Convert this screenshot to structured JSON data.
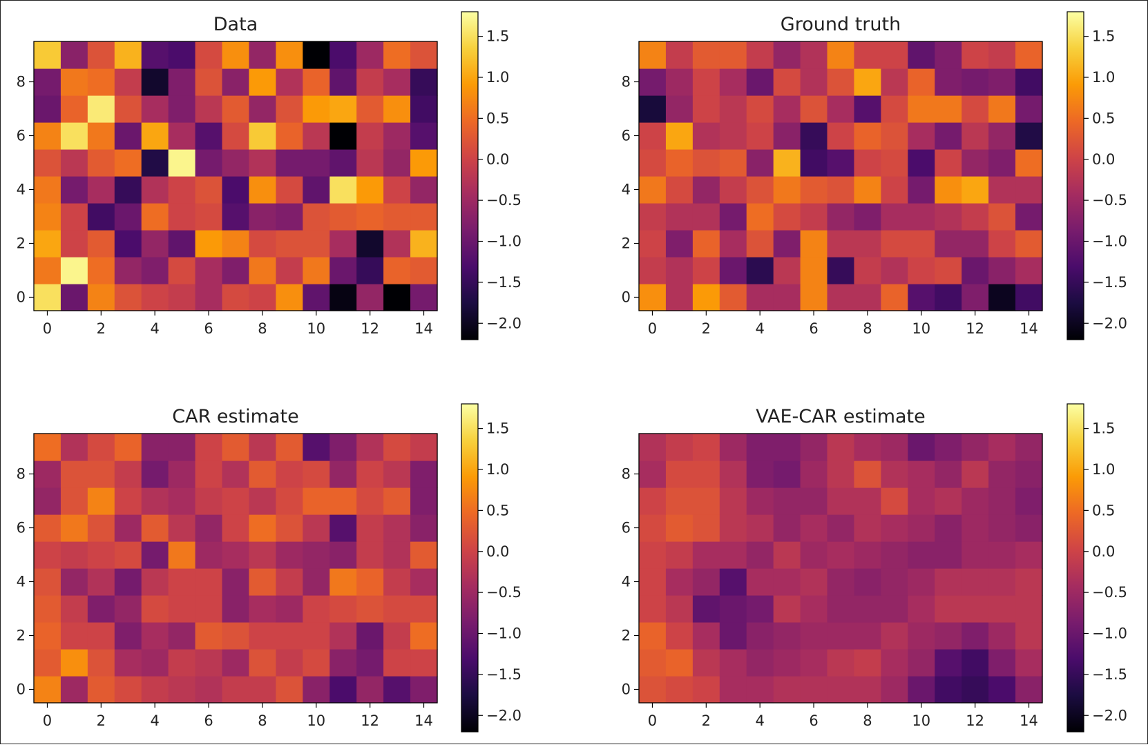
{
  "colormap": "inferno",
  "colormap_stops": [
    "#000004",
    "#1b0c41",
    "#4a0c6b",
    "#781c6d",
    "#a52c60",
    "#cf4446",
    "#ed6925",
    "#fb9b06",
    "#f7d13d",
    "#fcffa4"
  ],
  "chart_data": [
    {
      "type": "heatmap",
      "title": "Data",
      "xlim": [
        -0.5,
        14.5
      ],
      "ylim": [
        -0.5,
        9.5
      ],
      "xticks": [
        0,
        2,
        4,
        6,
        8,
        10,
        12,
        14
      ],
      "yticks": [
        0,
        2,
        4,
        6,
        8
      ],
      "colorbar": {
        "vmin": -2.2,
        "vmax": 1.8,
        "ticks": [
          1.5,
          1.0,
          0.5,
          0.0,
          -0.5,
          -1.0,
          -1.5,
          -2.0
        ],
        "tick_labels": [
          "1.5",
          "1.0",
          "0.5",
          "0.0",
          "−0.5",
          "−1.0",
          "−1.5",
          "−2.0"
        ]
      },
      "values": [
        [
          1.5,
          -1.0,
          0.7,
          0.2,
          0.0,
          -0.1,
          -0.4,
          0.1,
          0.0,
          0.8,
          -1.1,
          -2.1,
          -0.6,
          -2.2,
          -0.9
        ],
        [
          0.6,
          1.7,
          0.5,
          -0.6,
          -0.8,
          0.1,
          -0.4,
          -0.8,
          0.6,
          -0.1,
          0.6,
          -1.0,
          -1.5,
          0.4,
          0.3
        ],
        [
          1.0,
          0.0,
          0.3,
          -1.3,
          -0.6,
          -1.1,
          0.9,
          0.7,
          0.1,
          0.2,
          0.2,
          -0.4,
          -1.9,
          -0.3,
          1.1
        ],
        [
          0.7,
          0.0,
          -1.4,
          -1.0,
          0.5,
          0.0,
          0.1,
          -1.2,
          -0.7,
          -0.8,
          0.2,
          0.3,
          0.4,
          0.3,
          0.3
        ],
        [
          0.6,
          -0.9,
          -0.4,
          -1.5,
          -0.3,
          0.0,
          0.2,
          -1.3,
          0.8,
          0.1,
          -1.1,
          1.5,
          0.9,
          0.0,
          -0.6
        ],
        [
          0.2,
          -0.2,
          0.3,
          0.5,
          -1.7,
          1.7,
          -0.9,
          -0.6,
          -0.3,
          -0.9,
          -0.9,
          -1.1,
          -0.2,
          -0.6,
          0.9
        ],
        [
          0.7,
          1.5,
          0.6,
          -1.0,
          1.0,
          -0.4,
          -1.2,
          0.1,
          1.3,
          0.4,
          -0.2,
          -2.2,
          -0.1,
          -0.5,
          -1.2
        ],
        [
          -1.0,
          0.4,
          1.6,
          0.2,
          -0.4,
          -0.8,
          -0.2,
          0.3,
          -0.6,
          0.2,
          0.9,
          1.0,
          0.3,
          0.8,
          -1.4
        ],
        [
          -0.9,
          0.6,
          0.5,
          -0.1,
          -1.9,
          -0.8,
          0.2,
          -0.7,
          0.9,
          -0.3,
          0.4,
          -1.1,
          -0.1,
          -0.4,
          -1.5
        ],
        [
          1.3,
          -0.7,
          0.2,
          1.1,
          -1.2,
          -1.3,
          0.1,
          0.8,
          -0.6,
          0.8,
          -2.2,
          -1.3,
          -0.5,
          0.5,
          0.2
        ]
      ]
    },
    {
      "type": "heatmap",
      "title": "Ground truth",
      "xlim": [
        -0.5,
        14.5
      ],
      "ylim": [
        -0.5,
        9.5
      ],
      "xticks": [
        0,
        2,
        4,
        6,
        8,
        10,
        12,
        14
      ],
      "yticks": [
        0,
        2,
        4,
        6,
        8
      ],
      "colorbar": {
        "vmin": -2.2,
        "vmax": 1.8,
        "ticks": [
          1.5,
          1.0,
          0.5,
          0.0,
          -0.5,
          -1.0,
          -1.5,
          -2.0
        ],
        "tick_labels": [
          "1.5",
          "1.0",
          "0.5",
          "0.0",
          "−0.5",
          "−1.0",
          "−1.5",
          "−2.0"
        ]
      },
      "values": [
        [
          0.8,
          -0.3,
          0.9,
          0.3,
          -0.4,
          -0.4,
          0.7,
          -0.3,
          -0.3,
          0.4,
          -1.2,
          -1.4,
          -0.8,
          -2.0,
          -1.4
        ],
        [
          -0.1,
          -0.3,
          0.0,
          -1.0,
          -1.6,
          -0.2,
          0.7,
          -1.5,
          -0.1,
          -0.3,
          0.0,
          0.1,
          -1.0,
          -0.7,
          -0.4
        ],
        [
          0.0,
          -0.8,
          0.4,
          -0.4,
          0.2,
          -0.8,
          0.7,
          -0.2,
          -0.2,
          0.1,
          0.1,
          -0.6,
          -0.6,
          0.0,
          0.3
        ],
        [
          -0.1,
          -0.3,
          -0.3,
          -0.9,
          0.5,
          0.1,
          -0.1,
          -0.6,
          -0.8,
          -0.4,
          -0.4,
          -0.3,
          -0.1,
          0.2,
          -0.9
        ],
        [
          0.6,
          0.1,
          -0.6,
          -0.1,
          0.2,
          0.6,
          0.3,
          0.2,
          0.7,
          0.0,
          -0.9,
          0.8,
          1.0,
          -0.3,
          -0.3
        ],
        [
          0.1,
          0.4,
          0.2,
          0.3,
          -0.7,
          1.1,
          -1.4,
          -1.2,
          0.0,
          0.1,
          -1.3,
          0.0,
          -0.6,
          -0.8,
          0.5
        ],
        [
          0.0,
          1.0,
          -0.3,
          -0.2,
          0.0,
          -0.7,
          -1.5,
          0.0,
          0.4,
          0.2,
          -0.4,
          -0.9,
          -0.2,
          -0.6,
          -1.7
        ],
        [
          -1.8,
          -0.6,
          0.0,
          -0.2,
          0.1,
          -0.4,
          0.2,
          -0.4,
          -1.2,
          0.1,
          0.6,
          0.6,
          0.1,
          0.6,
          -0.9
        ],
        [
          -0.9,
          -0.5,
          0.0,
          -0.4,
          -1.0,
          0.1,
          -0.3,
          0.2,
          1.0,
          -0.2,
          0.4,
          -0.8,
          -0.9,
          -0.8,
          -1.4
        ],
        [
          0.7,
          -0.1,
          0.3,
          0.3,
          -0.1,
          -0.6,
          -0.3,
          0.7,
          0.0,
          0.0,
          -1.1,
          -0.8,
          0.0,
          -0.1,
          0.4
        ]
      ]
    },
    {
      "type": "heatmap",
      "title": "CAR estimate",
      "xlim": [
        -0.5,
        14.5
      ],
      "ylim": [
        -0.5,
        9.5
      ],
      "xticks": [
        0,
        2,
        4,
        6,
        8,
        10,
        12,
        14
      ],
      "yticks": [
        0,
        2,
        4,
        6,
        8
      ],
      "colorbar": {
        "vmin": -2.2,
        "vmax": 1.8,
        "ticks": [
          1.5,
          1.0,
          0.5,
          0.0,
          -0.5,
          -1.0,
          -1.5,
          -2.0
        ],
        "tick_labels": [
          "1.5",
          "1.0",
          "0.5",
          "0.0",
          "−0.5",
          "−1.0",
          "−1.5",
          "−2.0"
        ]
      },
      "values": [
        [
          0.7,
          -0.5,
          0.3,
          0.1,
          -0.1,
          -0.2,
          -0.3,
          -0.1,
          -0.1,
          0.2,
          -0.7,
          -1.3,
          -0.6,
          -1.2,
          -0.8
        ],
        [
          0.3,
          0.8,
          0.2,
          -0.4,
          -0.5,
          -0.1,
          -0.2,
          -0.5,
          0.2,
          -0.1,
          0.1,
          -0.7,
          -0.9,
          0.0,
          0.0
        ],
        [
          0.4,
          0.0,
          0.0,
          -0.8,
          -0.4,
          -0.6,
          0.3,
          0.2,
          0.0,
          0.0,
          0.0,
          -0.3,
          -1.0,
          -0.1,
          0.5
        ],
        [
          0.3,
          -0.1,
          -0.8,
          -0.6,
          0.1,
          0.0,
          0.0,
          -0.7,
          -0.4,
          -0.5,
          0.0,
          0.1,
          0.2,
          0.1,
          0.1
        ],
        [
          0.2,
          -0.6,
          -0.3,
          -0.9,
          -0.2,
          0.0,
          0.0,
          -0.7,
          0.3,
          -0.1,
          -0.6,
          0.6,
          0.4,
          -0.1,
          -0.4
        ],
        [
          0.0,
          -0.1,
          0.0,
          0.1,
          -0.9,
          0.6,
          -0.5,
          -0.4,
          -0.2,
          -0.5,
          -0.6,
          -0.7,
          -0.1,
          -0.3,
          0.3
        ],
        [
          0.3,
          0.6,
          0.2,
          -0.5,
          0.3,
          -0.2,
          -0.6,
          0.0,
          0.5,
          0.2,
          -0.2,
          -1.2,
          -0.1,
          -0.3,
          -0.7
        ],
        [
          -0.6,
          0.2,
          0.7,
          0.0,
          -0.3,
          -0.4,
          -0.1,
          0.0,
          -0.2,
          0.1,
          0.4,
          0.4,
          0.1,
          0.3,
          -0.8
        ],
        [
          -0.5,
          0.2,
          0.2,
          -0.1,
          -0.9,
          -0.5,
          0.0,
          -0.3,
          0.3,
          0.0,
          0.1,
          -0.6,
          0.0,
          -0.2,
          -0.8
        ],
        [
          0.5,
          -0.3,
          0.1,
          0.4,
          -0.7,
          -0.7,
          0.0,
          0.3,
          -0.2,
          0.3,
          -1.2,
          -0.8,
          -0.3,
          0.1,
          -0.1
        ]
      ]
    },
    {
      "type": "heatmap",
      "title": "VAE-CAR estimate",
      "xlim": [
        -0.5,
        14.5
      ],
      "ylim": [
        -0.5,
        9.5
      ],
      "xticks": [
        0,
        2,
        4,
        6,
        8,
        10,
        12,
        14
      ],
      "yticks": [
        0,
        2,
        4,
        6,
        8
      ],
      "colorbar": {
        "vmin": -2.2,
        "vmax": 1.8,
        "ticks": [
          1.5,
          1.0,
          0.5,
          0.0,
          -0.5,
          -1.0,
          -1.5,
          -2.0
        ],
        "tick_labels": [
          "1.5",
          "1.0",
          "0.5",
          "0.0",
          "−0.5",
          "−1.0",
          "−1.5",
          "−2.0"
        ]
      },
      "values": [
        [
          0.2,
          0.1,
          0.0,
          -0.4,
          -0.4,
          -0.3,
          -0.3,
          -0.3,
          -0.3,
          -0.5,
          -1.0,
          -1.4,
          -1.5,
          -1.3,
          -0.7
        ],
        [
          0.3,
          0.4,
          -0.2,
          -0.4,
          -0.6,
          -0.5,
          -0.4,
          -0.2,
          -0.1,
          -0.4,
          -0.6,
          -1.2,
          -1.4,
          -0.8,
          -0.4
        ],
        [
          0.4,
          0.0,
          -0.4,
          -1.0,
          -0.7,
          -0.6,
          -0.5,
          -0.5,
          -0.5,
          -0.3,
          -0.5,
          -0.6,
          -0.8,
          -0.5,
          -0.2
        ],
        [
          0.0,
          -0.2,
          -1.1,
          -1.0,
          -0.9,
          -0.2,
          -0.4,
          -0.6,
          -0.6,
          -0.6,
          -0.4,
          -0.2,
          -0.2,
          -0.2,
          -0.2
        ],
        [
          0.0,
          -0.4,
          -0.6,
          -1.2,
          -0.4,
          -0.4,
          -0.3,
          -0.6,
          -0.7,
          -0.6,
          -0.5,
          -0.3,
          -0.3,
          -0.3,
          -0.2
        ],
        [
          0.0,
          -0.1,
          -0.4,
          -0.4,
          -0.6,
          -0.2,
          -0.5,
          -0.4,
          -0.5,
          -0.6,
          -0.7,
          -0.7,
          -0.5,
          -0.5,
          -0.4
        ],
        [
          0.1,
          0.3,
          0.2,
          -0.2,
          -0.3,
          -0.6,
          -0.4,
          -0.6,
          -0.3,
          -0.4,
          -0.5,
          -0.7,
          -0.5,
          -0.6,
          -0.7
        ],
        [
          0.0,
          0.2,
          0.2,
          -0.2,
          -0.5,
          -0.6,
          -0.6,
          -0.3,
          -0.3,
          0.1,
          -0.4,
          -0.3,
          -0.5,
          -0.6,
          -0.8
        ],
        [
          -0.4,
          0.1,
          0.1,
          -0.3,
          -0.8,
          -0.9,
          -0.5,
          -0.2,
          0.2,
          -0.3,
          -0.4,
          -0.6,
          -0.2,
          -0.6,
          -0.7
        ],
        [
          -0.3,
          -0.1,
          0.0,
          -0.5,
          -0.8,
          -0.8,
          -0.6,
          -0.2,
          -0.4,
          -0.5,
          -1.0,
          -0.8,
          -0.6,
          -0.4,
          -0.6
        ]
      ]
    }
  ]
}
